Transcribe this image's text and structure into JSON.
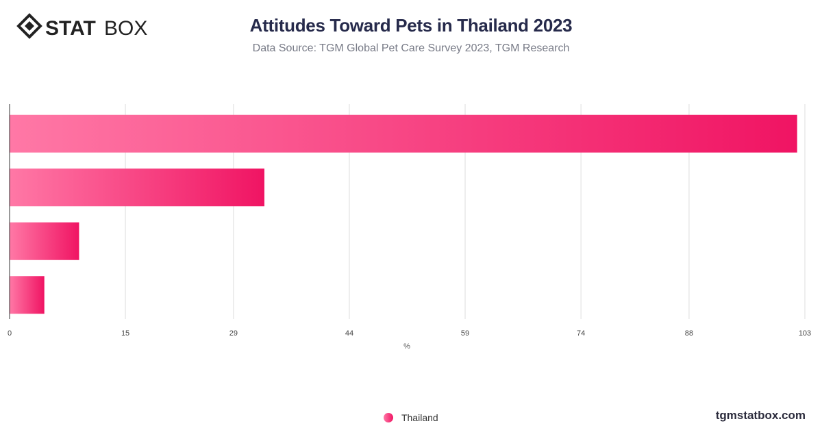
{
  "brand": {
    "logo_strong": "STAT",
    "logo_light": "BOX",
    "site": "tgmstatbox.com",
    "icon": "diamond-logo-icon"
  },
  "colors": {
    "bar_start": "#ff78a6",
    "bar_end": "#f01463",
    "grid": "#dddddd",
    "axis": "#333333"
  },
  "chart_data": {
    "type": "bar",
    "orientation": "horizontal",
    "title": "Attitudes Toward Pets in Thailand 2023",
    "subtitle": "Data Source: TGM Global Pet Care Survey 2023, TGM Research",
    "xlabel": "%",
    "ylabel": "",
    "xlim": [
      0,
      103
    ],
    "ticks": [
      0,
      15,
      29,
      44,
      59,
      74,
      88,
      103
    ],
    "grid": true,
    "legend_position": "bottom-center",
    "series": [
      {
        "name": "Thailand",
        "values": [
          102,
          33,
          9,
          4.5
        ]
      }
    ]
  }
}
